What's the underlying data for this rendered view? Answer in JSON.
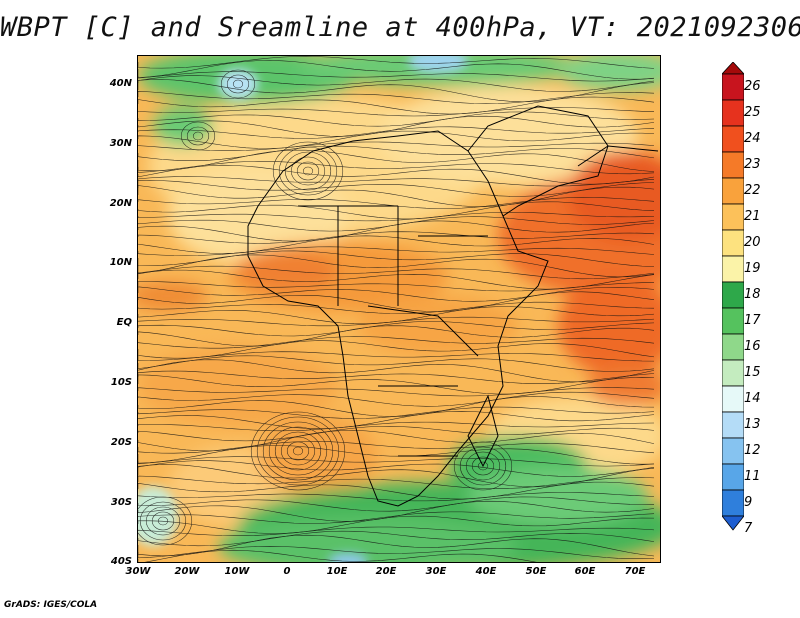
{
  "title": "WBPT [C] and Sreamline at 400hPa, VT: 2021092306",
  "credit": "GrADS: IGES/COLA",
  "map": {
    "region": "Africa and surrounding oceans",
    "lon_range": [
      -30,
      76
    ],
    "lat_range": [
      -40,
      45
    ],
    "y_tick_labels": [
      "40N",
      "30N",
      "20N",
      "10N",
      "EQ",
      "10S",
      "20S",
      "30S",
      "40S"
    ],
    "x_tick_labels": [
      "30W",
      "20W",
      "10W",
      "0",
      "10E",
      "20E",
      "30E",
      "40E",
      "50E",
      "60E",
      "70E"
    ],
    "overlay": "streamlines",
    "boundaries": "country borders"
  },
  "colorbar": {
    "labels": [
      "26",
      "25",
      "24",
      "23",
      "22",
      "21",
      "20",
      "19",
      "18",
      "17",
      "16",
      "15",
      "14",
      "13",
      "12",
      "11",
      "9",
      "7"
    ],
    "colors": [
      "#a50a0a",
      "#c8141e",
      "#e6321e",
      "#f0501e",
      "#f57a28",
      "#f9a23c",
      "#fcc15a",
      "#fde27f",
      "#fbf3a8",
      "#2ea84a",
      "#55c25e",
      "#8fd88a",
      "#c4ecbf",
      "#e6f9f8",
      "#b4dcf7",
      "#86c3f0",
      "#58a6e8",
      "#2f7fdc",
      "#1e5ed0"
    ]
  }
}
